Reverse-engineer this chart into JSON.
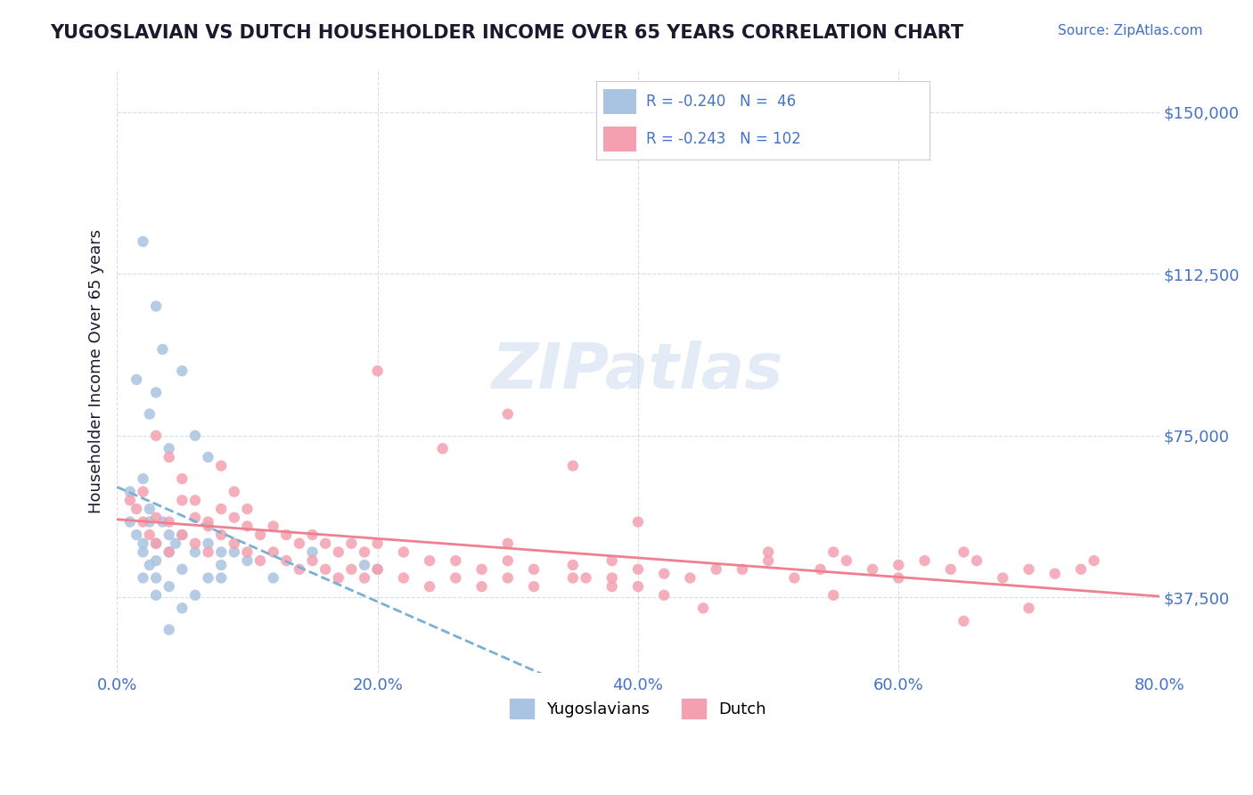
{
  "title": "YUGOSLAVIAN VS DUTCH HOUSEHOLDER INCOME OVER 65 YEARS CORRELATION CHART",
  "source": "Source: ZipAtlas.com",
  "ylabel": "Householder Income Over 65 years",
  "xlabel": "",
  "xlim": [
    0.0,
    0.8
  ],
  "ylim": [
    20000,
    160000
  ],
  "xtick_labels": [
    "0.0%",
    "20.0%",
    "40.0%",
    "60.0%",
    "80.0%"
  ],
  "xtick_values": [
    0.0,
    0.2,
    0.4,
    0.6,
    0.8
  ],
  "ytick_labels": [
    "$37,500",
    "$75,000",
    "$112,500",
    "$150,000"
  ],
  "ytick_values": [
    37500,
    75000,
    112500,
    150000
  ],
  "title_color": "#1a1a2e",
  "source_color": "#4472c4",
  "axis_color": "#4472c4",
  "grid_color": "#c0d0e8",
  "background_color": "#ffffff",
  "yug_color": "#a8c4e0",
  "dutch_color": "#f4a0b0",
  "yug_line_color": "#7ab0d4",
  "dutch_line_color": "#f08090",
  "yug_line_style": "--",
  "dutch_line_style": "-",
  "watermark": "ZIPatlas",
  "watermark_color": "#c8d8f0",
  "legend_R_yug": "R = -0.240",
  "legend_N_yug": "N =  46",
  "legend_R_dutch": "R = -0.243",
  "legend_N_dutch": "N = 102",
  "yug_scatter_x": [
    0.01,
    0.01,
    0.015,
    0.02,
    0.025,
    0.02,
    0.02,
    0.025,
    0.025,
    0.03,
    0.03,
    0.03,
    0.035,
    0.04,
    0.04,
    0.045,
    0.05,
    0.05,
    0.06,
    0.07,
    0.08,
    0.08,
    0.09,
    0.1,
    0.12,
    0.15,
    0.19,
    0.2,
    0.02,
    0.03,
    0.05,
    0.06,
    0.07,
    0.08,
    0.03,
    0.04,
    0.02,
    0.03,
    0.04,
    0.06,
    0.07,
    0.05,
    0.04,
    0.035,
    0.025,
    0.015
  ],
  "yug_scatter_y": [
    55000,
    62000,
    52000,
    50000,
    58000,
    48000,
    42000,
    55000,
    45000,
    50000,
    46000,
    42000,
    55000,
    52000,
    48000,
    50000,
    52000,
    44000,
    48000,
    50000,
    45000,
    42000,
    48000,
    46000,
    42000,
    48000,
    45000,
    44000,
    120000,
    105000,
    90000,
    75000,
    70000,
    48000,
    85000,
    72000,
    65000,
    38000,
    40000,
    38000,
    42000,
    35000,
    30000,
    95000,
    80000,
    88000
  ],
  "dutch_scatter_x": [
    0.01,
    0.015,
    0.02,
    0.02,
    0.025,
    0.03,
    0.03,
    0.04,
    0.04,
    0.05,
    0.05,
    0.06,
    0.06,
    0.07,
    0.07,
    0.08,
    0.08,
    0.09,
    0.09,
    0.1,
    0.1,
    0.11,
    0.11,
    0.12,
    0.12,
    0.13,
    0.13,
    0.14,
    0.14,
    0.15,
    0.15,
    0.16,
    0.16,
    0.17,
    0.17,
    0.18,
    0.18,
    0.19,
    0.19,
    0.2,
    0.2,
    0.22,
    0.22,
    0.24,
    0.24,
    0.26,
    0.26,
    0.28,
    0.28,
    0.3,
    0.3,
    0.32,
    0.32,
    0.35,
    0.35,
    0.38,
    0.38,
    0.4,
    0.4,
    0.42,
    0.44,
    0.46,
    0.5,
    0.52,
    0.54,
    0.55,
    0.56,
    0.58,
    0.6,
    0.62,
    0.64,
    0.65,
    0.66,
    0.68,
    0.7,
    0.72,
    0.74,
    0.75,
    0.03,
    0.04,
    0.05,
    0.06,
    0.07,
    0.08,
    0.09,
    0.1,
    0.25,
    0.35,
    0.45,
    0.55,
    0.3,
    0.4,
    0.5,
    0.6,
    0.2,
    0.3,
    0.65,
    0.7,
    0.42,
    0.38,
    0.36,
    0.48
  ],
  "dutch_scatter_y": [
    60000,
    58000,
    55000,
    62000,
    52000,
    56000,
    50000,
    55000,
    48000,
    60000,
    52000,
    56000,
    50000,
    54000,
    48000,
    58000,
    52000,
    56000,
    50000,
    54000,
    48000,
    52000,
    46000,
    54000,
    48000,
    52000,
    46000,
    50000,
    44000,
    52000,
    46000,
    50000,
    44000,
    48000,
    42000,
    50000,
    44000,
    48000,
    42000,
    50000,
    44000,
    48000,
    42000,
    46000,
    40000,
    46000,
    42000,
    44000,
    40000,
    46000,
    42000,
    44000,
    40000,
    45000,
    42000,
    46000,
    42000,
    44000,
    40000,
    43000,
    42000,
    44000,
    46000,
    42000,
    44000,
    48000,
    46000,
    44000,
    45000,
    46000,
    44000,
    48000,
    46000,
    42000,
    44000,
    43000,
    44000,
    46000,
    75000,
    70000,
    65000,
    60000,
    55000,
    68000,
    62000,
    58000,
    72000,
    68000,
    35000,
    38000,
    80000,
    55000,
    48000,
    42000,
    90000,
    50000,
    32000,
    35000,
    38000,
    40000,
    42000,
    44000
  ]
}
